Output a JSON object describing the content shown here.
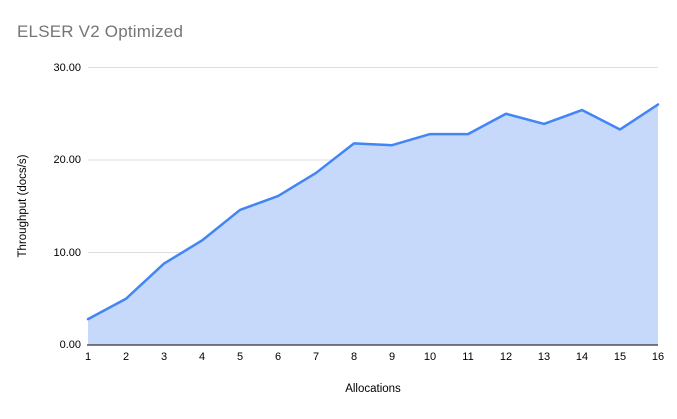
{
  "title": "ELSER V2 Optimized",
  "chart_data": {
    "type": "area",
    "title": "ELSER V2 Optimized",
    "xlabel": "Allocations",
    "ylabel": "Throughput (docs/s)",
    "categories": [
      "1",
      "2",
      "3",
      "4",
      "5",
      "6",
      "7",
      "8",
      "9",
      "10",
      "11",
      "12",
      "13",
      "14",
      "15",
      "16"
    ],
    "values": [
      2.8,
      5.0,
      8.8,
      11.3,
      14.6,
      16.1,
      18.6,
      21.8,
      21.6,
      22.8,
      22.8,
      25.0,
      23.9,
      25.4,
      23.3,
      26.0
    ],
    "series_name": "Throughput (docs/s)",
    "ylim": [
      0,
      30
    ],
    "y_ticks": [
      "0.00",
      "10.00",
      "20.00",
      "30.00"
    ],
    "grid": "horizontal",
    "legend": "none",
    "colors": {
      "line": "#4285f4",
      "fill": "#c7d9fa",
      "grid": "#dddddd",
      "axis": "#333333",
      "title": "#757575",
      "tick_text": "#000000",
      "background": "#ffffff"
    }
  }
}
